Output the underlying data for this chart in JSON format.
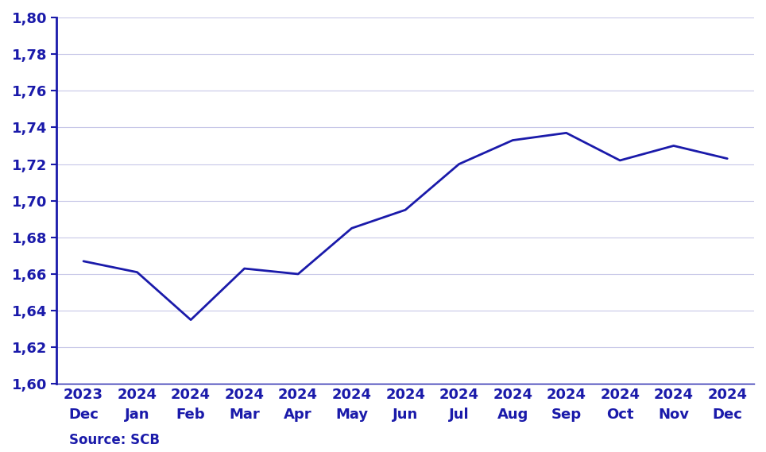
{
  "x_labels_top": [
    "2023",
    "2024",
    "2024",
    "2024",
    "2024",
    "2024",
    "2024",
    "2024",
    "2024",
    "2024",
    "2024",
    "2024",
    "2024"
  ],
  "x_labels_bot": [
    "Dec",
    "Jan",
    "Feb",
    "Mar",
    "Apr",
    "May",
    "Jun",
    "Jul",
    "Aug",
    "Sep",
    "Oct",
    "Nov",
    "Dec"
  ],
  "values": [
    1.667,
    1.661,
    1.635,
    1.663,
    1.66,
    1.685,
    1.695,
    1.72,
    1.733,
    1.737,
    1.722,
    1.73,
    1.723
  ],
  "line_color": "#1a1aaa",
  "line_width": 2.0,
  "ylim": [
    1.6,
    1.8
  ],
  "yticks": [
    1.6,
    1.62,
    1.64,
    1.66,
    1.68,
    1.7,
    1.72,
    1.74,
    1.76,
    1.78,
    1.8
  ],
  "background_color": "#ffffff",
  "grid_color": "#c8c8e8",
  "source_text": "Source: SCB",
  "source_fontsize": 12,
  "tick_fontsize": 13,
  "tick_color": "#1a1aaa",
  "spine_color": "#1a1aaa",
  "font_weight": "bold"
}
